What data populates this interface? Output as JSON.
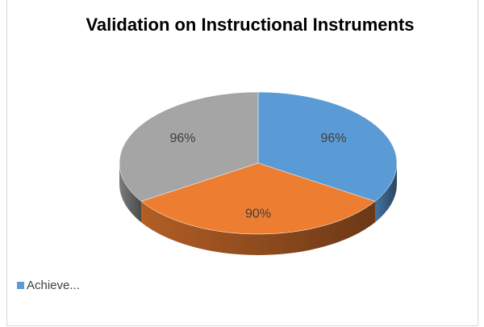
{
  "chart_data": {
    "type": "pie",
    "title": "Validation on Instructional Instruments",
    "series": [
      {
        "name": "Achieve...",
        "values": [
          96,
          90,
          96
        ],
        "value_labels": [
          "96%",
          "90%",
          "96%"
        ]
      }
    ],
    "colors": [
      "#5b9bd5",
      "#ed7d31",
      "#a5a5a5"
    ]
  }
}
